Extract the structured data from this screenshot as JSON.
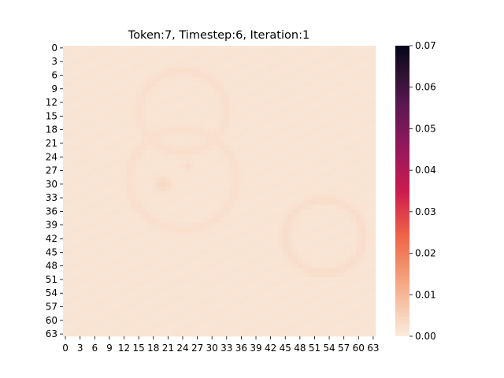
{
  "chart_data": {
    "type": "heatmap",
    "title": "Token:7, Timestep:6, Iteration:1",
    "xlabel": "",
    "ylabel": "",
    "rows": 64,
    "cols": 64,
    "x_ticks": [
      "0",
      "3",
      "6",
      "9",
      "12",
      "15",
      "18",
      "21",
      "24",
      "27",
      "30",
      "33",
      "36",
      "39",
      "42",
      "45",
      "48",
      "51",
      "54",
      "57",
      "60",
      "63"
    ],
    "y_ticks": [
      "0",
      "3",
      "6",
      "9",
      "12",
      "15",
      "18",
      "21",
      "24",
      "27",
      "30",
      "33",
      "36",
      "39",
      "42",
      "45",
      "48",
      "51",
      "54",
      "57",
      "60",
      "63"
    ],
    "colorbar": {
      "range": [
        0.0,
        0.07
      ],
      "ticks": [
        "0.00",
        "0.01",
        "0.02",
        "0.03",
        "0.04",
        "0.05",
        "0.06",
        "0.07"
      ],
      "colormap": "rocket_r"
    },
    "base_value": 0.0012,
    "features": [
      {
        "kind": "ring",
        "center": [
          14,
          24
        ],
        "radius": 9,
        "value": 0.0024
      },
      {
        "kind": "ring",
        "center": [
          29,
          24
        ],
        "radius": 11,
        "value": 0.0024
      },
      {
        "kind": "ring",
        "center": [
          41.5,
          53
        ],
        "radius": 8,
        "value": 0.0028
      },
      {
        "kind": "blob",
        "center": [
          30,
          20
        ],
        "radius": 1.6,
        "value": 0.0038
      },
      {
        "kind": "blob",
        "center": [
          26,
          25
        ],
        "radius": 1.2,
        "value": 0.0028
      }
    ]
  }
}
